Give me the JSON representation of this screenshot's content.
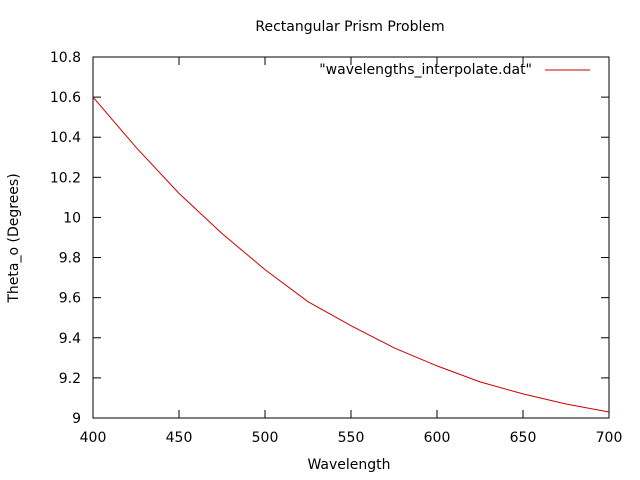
{
  "chart_data": {
    "type": "line",
    "title": "Rectangular Prism Problem",
    "xlabel": "Wavelength",
    "ylabel": "Theta_o (Degrees)",
    "xlim": [
      400,
      700
    ],
    "ylim": [
      9,
      10.8
    ],
    "xticks": [
      400,
      450,
      500,
      550,
      600,
      650,
      700
    ],
    "yticks": [
      9,
      9.2,
      9.4,
      9.6,
      9.8,
      10,
      10.2,
      10.4,
      10.6,
      10.8
    ],
    "xtick_labels": [
      "400",
      "450",
      "500",
      "550",
      "600",
      "650",
      "700"
    ],
    "ytick_labels": [
      "9",
      "9.2",
      "9.4",
      "9.6",
      "9.8",
      "10",
      "10.2",
      "10.4",
      "10.6",
      "10.8"
    ],
    "legend_position": "top-right",
    "grid": false,
    "series": [
      {
        "name": "\"wavelengths_interpolate.dat\"",
        "color": "#cc0000",
        "x": [
          400,
          425,
          450,
          475,
          500,
          525,
          550,
          575,
          600,
          625,
          650,
          675,
          700
        ],
        "y": [
          10.6,
          10.35,
          10.12,
          9.92,
          9.74,
          9.58,
          9.46,
          9.35,
          9.26,
          9.18,
          9.12,
          9.07,
          9.03
        ]
      }
    ]
  }
}
